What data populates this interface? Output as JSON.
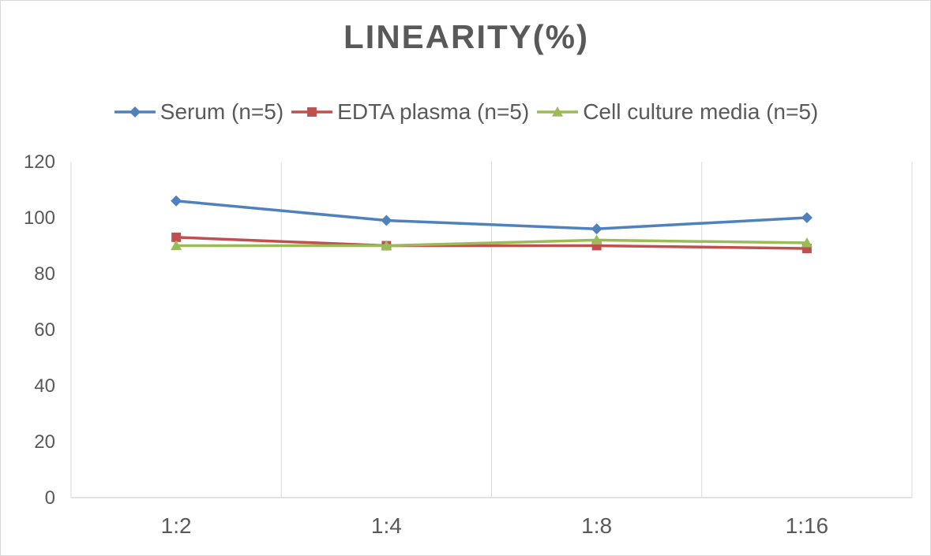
{
  "chart_data": {
    "type": "line",
    "title": "LINEARITY(%)",
    "categories": [
      "1:2",
      "1:4",
      "1:8",
      "1:16"
    ],
    "ylim": [
      0,
      120
    ],
    "yticks": [
      0,
      20,
      40,
      60,
      80,
      100,
      120
    ],
    "grid": "vertical",
    "legend_position": "top",
    "series": [
      {
        "name": "Serum (n=5)",
        "color": "#4F81BD",
        "marker": "diamond",
        "values": [
          106,
          99,
          96,
          100
        ]
      },
      {
        "name": "EDTA plasma (n=5)",
        "color": "#C0504D",
        "marker": "square",
        "values": [
          93,
          90,
          90,
          89
        ]
      },
      {
        "name": "Cell culture media (n=5)",
        "color": "#9BBB59",
        "marker": "triangle",
        "values": [
          90,
          90,
          92,
          91
        ]
      }
    ]
  }
}
